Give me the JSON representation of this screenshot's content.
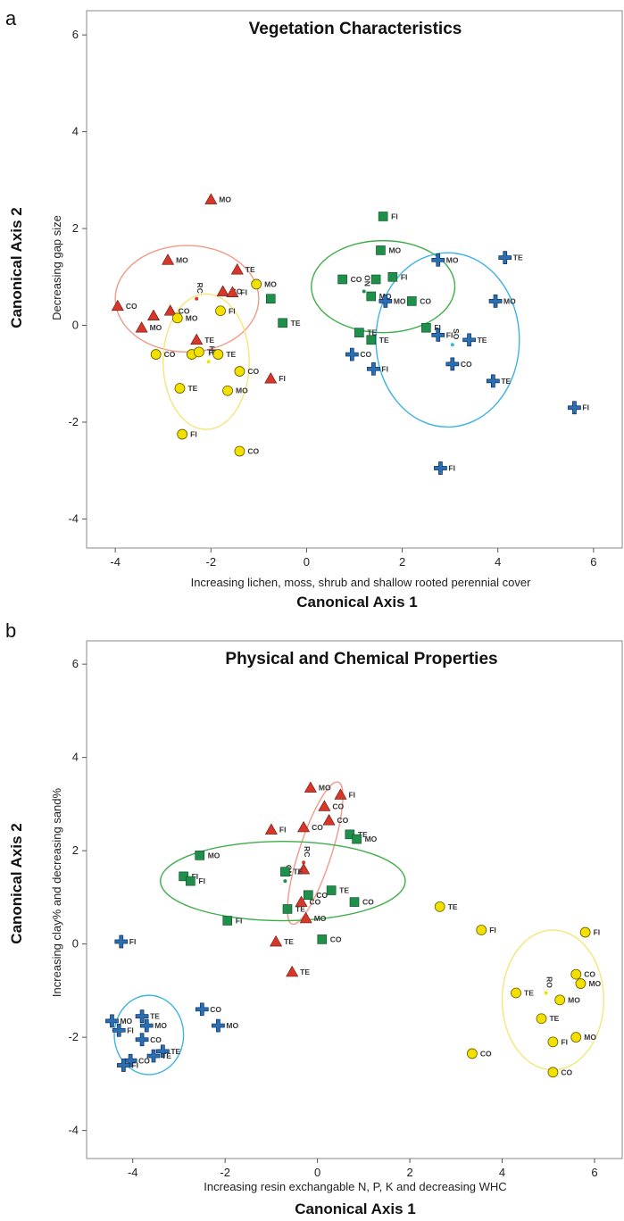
{
  "colors": {
    "frame": "#888888",
    "triangle": "#d9362a",
    "square": "#1f8f4a",
    "circle": "#f2e000",
    "cross": "#2a6fb5",
    "ellipse_red": "#f09a88",
    "ellipse_green": "#3fae49",
    "ellipse_yellow": "#f5e57a",
    "ellipse_blue": "#3fb4e0"
  },
  "marker_icons": {
    "triangle": "triangle-marker",
    "square": "square-marker",
    "circle": "circle-marker",
    "cross": "cross-marker"
  },
  "chart_data": [
    {
      "panel_label": "a",
      "type": "scatter",
      "title": "Vegetation Characteristics",
      "ylabel": "Canonical Axis 2",
      "ylabel_sub": "Decreasing gap size",
      "xlabel": "Canonical Axis 1",
      "xlabel_sub": "Increasing lichen, moss, shrub and shallow rooted perennial cover",
      "xlim": [
        -4.6,
        6.6
      ],
      "ylim": [
        -4.6,
        6.5
      ],
      "xticks": [
        -4,
        -2,
        0,
        2,
        4,
        6
      ],
      "yticks": [
        -4,
        -2,
        0,
        2,
        4,
        6
      ],
      "grid": false,
      "series": [
        {
          "marker": "triangle",
          "points": [
            {
              "x": -2.0,
              "y": 2.6,
              "label": "MO"
            },
            {
              "x": -2.9,
              "y": 1.35,
              "label": "MO"
            },
            {
              "x": -1.45,
              "y": 1.15,
              "label": "TE"
            },
            {
              "x": -1.75,
              "y": 0.7,
              "label": "CO"
            },
            {
              "x": -1.55,
              "y": 0.68,
              "label": "FI"
            },
            {
              "x": -3.95,
              "y": 0.4,
              "label": "CO"
            },
            {
              "x": -3.2,
              "y": 0.2,
              "label": ""
            },
            {
              "x": -2.85,
              "y": 0.3,
              "label": "CO"
            },
            {
              "x": -3.45,
              "y": -0.05,
              "label": "MO"
            },
            {
              "x": -2.3,
              "y": -0.3,
              "label": "TE"
            },
            {
              "x": -0.75,
              "y": -1.1,
              "label": "FI"
            }
          ]
        },
        {
          "marker": "square",
          "points": [
            {
              "x": 1.6,
              "y": 2.25,
              "label": "FI"
            },
            {
              "x": 1.55,
              "y": 1.55,
              "label": "MO"
            },
            {
              "x": 0.75,
              "y": 0.95,
              "label": "CO"
            },
            {
              "x": 1.45,
              "y": 0.95,
              "label": ""
            },
            {
              "x": 1.8,
              "y": 1.0,
              "label": "FI"
            },
            {
              "x": 1.35,
              "y": 0.6,
              "label": "MO"
            },
            {
              "x": 2.2,
              "y": 0.5,
              "label": "CO"
            },
            {
              "x": -0.75,
              "y": 0.55,
              "label": ""
            },
            {
              "x": -0.5,
              "y": 0.05,
              "label": "TE"
            },
            {
              "x": 1.1,
              "y": -0.15,
              "label": "TE"
            },
            {
              "x": 2.5,
              "y": -0.05,
              "label": "FI"
            },
            {
              "x": 1.35,
              "y": -0.3,
              "label": "TE"
            }
          ]
        },
        {
          "marker": "circle",
          "points": [
            {
              "x": -1.05,
              "y": 0.85,
              "label": "MO"
            },
            {
              "x": -1.8,
              "y": 0.3,
              "label": "FI"
            },
            {
              "x": -2.7,
              "y": 0.15,
              "label": "MO"
            },
            {
              "x": -3.15,
              "y": -0.6,
              "label": "CO"
            },
            {
              "x": -2.4,
              "y": -0.6,
              "label": ""
            },
            {
              "x": -2.25,
              "y": -0.55,
              "label": "TE"
            },
            {
              "x": -1.85,
              "y": -0.6,
              "label": "TE"
            },
            {
              "x": -2.65,
              "y": -1.3,
              "label": "TE"
            },
            {
              "x": -1.65,
              "y": -1.35,
              "label": "MO"
            },
            {
              "x": -1.4,
              "y": -0.95,
              "label": "CO"
            },
            {
              "x": -2.6,
              "y": -2.25,
              "label": "FI"
            },
            {
              "x": -1.4,
              "y": -2.6,
              "label": "CO"
            }
          ]
        },
        {
          "marker": "cross",
          "points": [
            {
              "x": 4.15,
              "y": 1.4,
              "label": "TE"
            },
            {
              "x": 2.75,
              "y": 1.35,
              "label": "MO"
            },
            {
              "x": 3.95,
              "y": 0.5,
              "label": "MO"
            },
            {
              "x": 1.65,
              "y": 0.5,
              "label": "MO"
            },
            {
              "x": 2.75,
              "y": -0.2,
              "label": "FI"
            },
            {
              "x": 3.4,
              "y": -0.3,
              "label": "TE"
            },
            {
              "x": 0.95,
              "y": -0.6,
              "label": "CO"
            },
            {
              "x": 3.05,
              "y": -0.8,
              "label": "CO"
            },
            {
              "x": 1.4,
              "y": -0.9,
              "label": "FI"
            },
            {
              "x": 3.9,
              "y": -1.15,
              "label": "TE"
            },
            {
              "x": 5.6,
              "y": -1.7,
              "label": "FI"
            },
            {
              "x": 2.8,
              "y": -2.95,
              "label": "FI"
            }
          ]
        }
      ],
      "ellipses": [
        {
          "color": "ellipse_red",
          "cx": -2.5,
          "cy": 0.55,
          "rx": 1.5,
          "ry": 1.1,
          "angle": 0
        },
        {
          "color": "ellipse_yellow",
          "cx": -2.1,
          "cy": -0.75,
          "rx": 0.9,
          "ry": 1.4,
          "angle": 0
        },
        {
          "color": "ellipse_green",
          "cx": 1.6,
          "cy": 0.8,
          "rx": 1.5,
          "ry": 0.95,
          "angle": 0
        },
        {
          "color": "ellipse_blue",
          "cx": 2.95,
          "cy": -0.3,
          "rx": 1.5,
          "ry": 1.8,
          "angle": 0
        }
      ],
      "centroids": [
        {
          "x": -2.3,
          "y": 0.55,
          "label": "RC",
          "color": "triangle"
        },
        {
          "x": 1.2,
          "y": 0.7,
          "label": "ON",
          "color": "square"
        },
        {
          "x": 3.05,
          "y": -0.4,
          "label": "SO",
          "color": "ellipse_blue"
        },
        {
          "x": -2.05,
          "y": -0.75,
          "label": "HL",
          "color": "circle"
        }
      ]
    },
    {
      "panel_label": "b",
      "type": "scatter",
      "title": "Physical and Chemical Properties",
      "ylabel": "Canonical Axis 2",
      "ylabel_sub": "Increasing clay% and decreasing sand%",
      "xlabel": "Canonical Axis 1",
      "xlabel_sub": "Increasing resin exchangable N, P, K and decreasing WHC",
      "xlim": [
        -5.0,
        6.6
      ],
      "ylim": [
        -4.6,
        6.5
      ],
      "xticks": [
        -4,
        -2,
        0,
        2,
        4,
        6
      ],
      "yticks": [
        -4,
        -2,
        0,
        2,
        4,
        6
      ],
      "grid": false,
      "series": [
        {
          "marker": "triangle",
          "points": [
            {
              "x": -0.15,
              "y": 3.35,
              "label": "MO"
            },
            {
              "x": 0.5,
              "y": 3.2,
              "label": "FI"
            },
            {
              "x": 0.15,
              "y": 2.95,
              "label": "CO"
            },
            {
              "x": 0.25,
              "y": 2.65,
              "label": "CO"
            },
            {
              "x": -1.0,
              "y": 2.45,
              "label": "FI"
            },
            {
              "x": -0.3,
              "y": 2.5,
              "label": "CO"
            },
            {
              "x": -0.3,
              "y": 1.6,
              "label": ""
            },
            {
              "x": -0.35,
              "y": 0.9,
              "label": "CO"
            },
            {
              "x": -0.25,
              "y": 0.55,
              "label": "MO"
            },
            {
              "x": -0.9,
              "y": 0.05,
              "label": "TE"
            },
            {
              "x": -0.55,
              "y": -0.6,
              "label": "TE"
            }
          ]
        },
        {
          "marker": "square",
          "points": [
            {
              "x": -2.55,
              "y": 1.9,
              "label": "MO"
            },
            {
              "x": -2.9,
              "y": 1.45,
              "label": "FI"
            },
            {
              "x": -2.75,
              "y": 1.35,
              "label": "FI"
            },
            {
              "x": 0.7,
              "y": 2.35,
              "label": "TE"
            },
            {
              "x": 0.85,
              "y": 2.25,
              "label": "MO"
            },
            {
              "x": -0.7,
              "y": 1.55,
              "label": "TE"
            },
            {
              "x": 0.3,
              "y": 1.15,
              "label": "TE"
            },
            {
              "x": -0.2,
              "y": 1.05,
              "label": "CO"
            },
            {
              "x": -0.65,
              "y": 0.75,
              "label": "TE"
            },
            {
              "x": 0.8,
              "y": 0.9,
              "label": "CO"
            },
            {
              "x": -1.95,
              "y": 0.5,
              "label": "FI"
            },
            {
              "x": 0.1,
              "y": 0.1,
              "label": "CO"
            }
          ]
        },
        {
          "marker": "circle",
          "points": [
            {
              "x": 2.65,
              "y": 0.8,
              "label": "TE"
            },
            {
              "x": 3.55,
              "y": 0.3,
              "label": "FI"
            },
            {
              "x": 5.8,
              "y": 0.25,
              "label": "FI"
            },
            {
              "x": 5.6,
              "y": -0.65,
              "label": "CO"
            },
            {
              "x": 5.7,
              "y": -0.85,
              "label": "MO"
            },
            {
              "x": 4.3,
              "y": -1.05,
              "label": "TE"
            },
            {
              "x": 5.25,
              "y": -1.2,
              "label": "MO"
            },
            {
              "x": 4.85,
              "y": -1.6,
              "label": "TE"
            },
            {
              "x": 5.6,
              "y": -2.0,
              "label": "MO"
            },
            {
              "x": 5.1,
              "y": -2.1,
              "label": "FI"
            },
            {
              "x": 3.35,
              "y": -2.35,
              "label": "CO"
            },
            {
              "x": 5.1,
              "y": -2.75,
              "label": "CO"
            }
          ]
        },
        {
          "marker": "cross",
          "points": [
            {
              "x": -4.25,
              "y": 0.05,
              "label": "FI"
            },
            {
              "x": -2.5,
              "y": -1.4,
              "label": "CO"
            },
            {
              "x": -3.8,
              "y": -1.55,
              "label": "TE"
            },
            {
              "x": -4.45,
              "y": -1.65,
              "label": "MO"
            },
            {
              "x": -3.7,
              "y": -1.75,
              "label": "MO"
            },
            {
              "x": -2.15,
              "y": -1.75,
              "label": "MO"
            },
            {
              "x": -4.3,
              "y": -1.85,
              "label": "FI"
            },
            {
              "x": -3.8,
              "y": -2.05,
              "label": "CO"
            },
            {
              "x": -3.35,
              "y": -2.3,
              "label": "TE"
            },
            {
              "x": -3.55,
              "y": -2.4,
              "label": "TE"
            },
            {
              "x": -4.05,
              "y": -2.5,
              "label": "CO"
            },
            {
              "x": -4.2,
              "y": -2.6,
              "label": "FI"
            }
          ]
        }
      ],
      "ellipses": [
        {
          "color": "ellipse_red",
          "cx": -0.05,
          "cy": 1.95,
          "rx": 0.35,
          "ry": 1.6,
          "angle": 18
        },
        {
          "color": "ellipse_green",
          "cx": -0.75,
          "cy": 1.35,
          "rx": 2.65,
          "ry": 0.85,
          "angle": 0
        },
        {
          "color": "ellipse_yellow",
          "cx": 5.1,
          "cy": -1.2,
          "rx": 1.1,
          "ry": 1.5,
          "angle": 0
        },
        {
          "color": "ellipse_blue",
          "cx": -3.65,
          "cy": -1.95,
          "rx": 0.75,
          "ry": 0.85,
          "angle": 0
        }
      ],
      "centroids": [
        {
          "x": -0.3,
          "y": 1.75,
          "label": "RC",
          "color": "triangle"
        },
        {
          "x": -0.7,
          "y": 1.35,
          "label": "ON",
          "color": "square"
        },
        {
          "x": 4.95,
          "y": -1.05,
          "label": "RO",
          "color": "circle"
        }
      ]
    }
  ]
}
